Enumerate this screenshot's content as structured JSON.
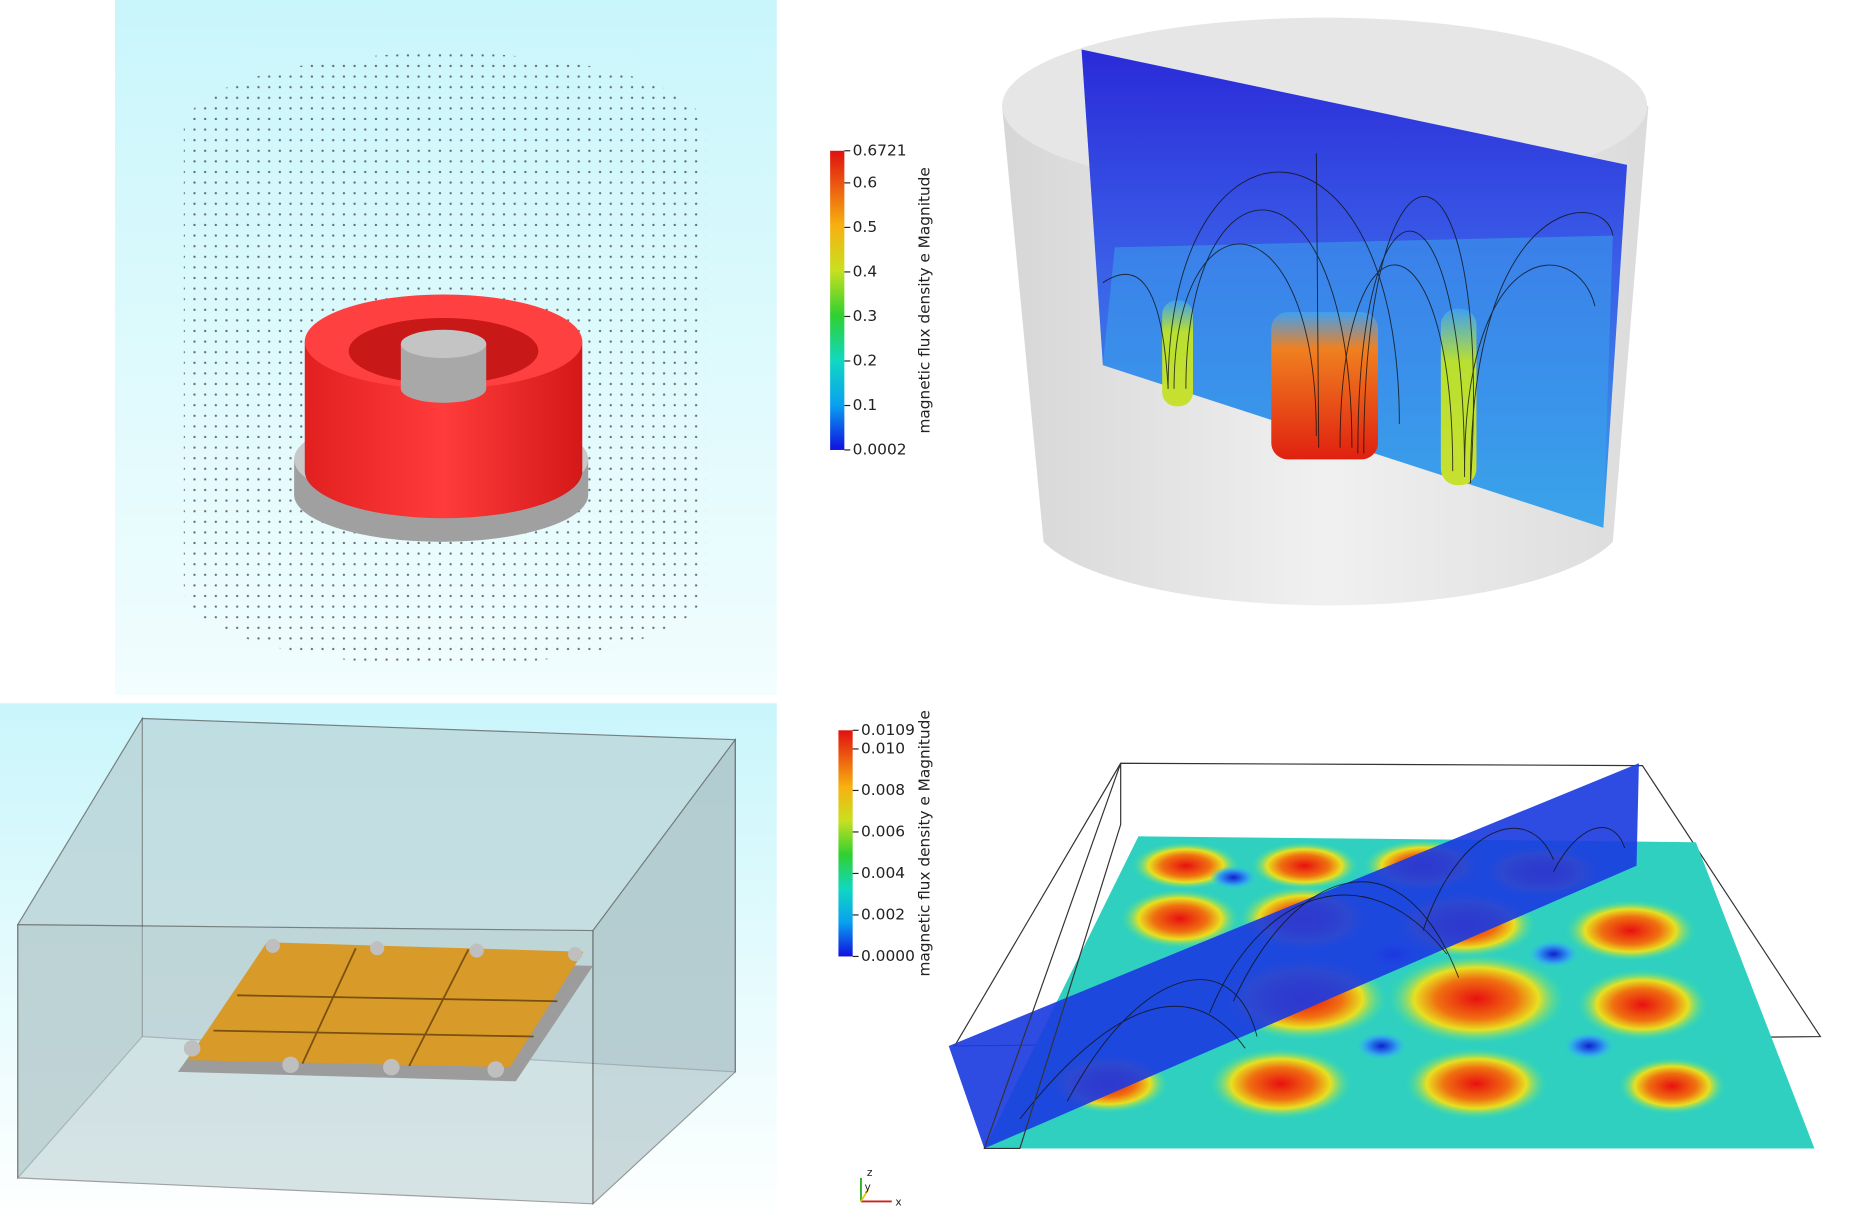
{
  "colorbars": [
    {
      "title": "magnetic flux density e Magnitude",
      "range": [
        0.0002,
        0.6721
      ],
      "ticks": [
        0.6721,
        0.6,
        0.5,
        0.4,
        0.3,
        0.2,
        0.1,
        0.0002
      ]
    },
    {
      "title": "magnetic flux density e Magnitude",
      "range": [
        0,
        0.0109
      ],
      "ticks": [
        0.0109,
        {
          "value": 0.01,
          "label": "0.010"
        },
        0.008,
        0.006,
        0.004,
        0.002,
        {
          "value": 0,
          "label": "0.0000"
        }
      ]
    }
  ],
  "axes_triad": {
    "labels": [
      "z",
      "y",
      "x"
    ]
  }
}
